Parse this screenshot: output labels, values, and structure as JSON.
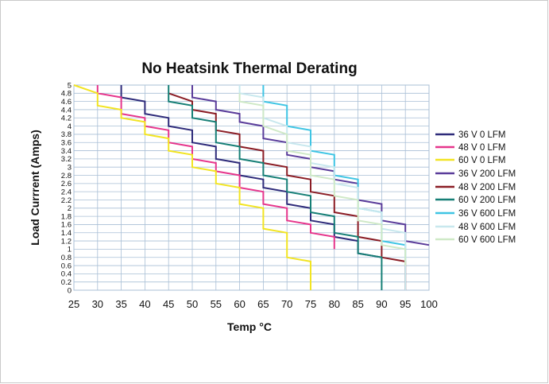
{
  "chart_data": {
    "type": "line",
    "title": "No Heatsink Thermal Derating",
    "xlabel": "Temp °C",
    "ylabel": "Load Currrent (Amps)",
    "xlim": [
      25,
      100
    ],
    "ylim": [
      0,
      5
    ],
    "x_ticks": [
      "25",
      "30",
      "35",
      "40",
      "45",
      "50",
      "55",
      "60",
      "65",
      "70",
      "75",
      "80",
      "85",
      "90",
      "95",
      "100"
    ],
    "y_ticks": [
      "0",
      "0.2",
      "0.4",
      "0.6",
      "0.8",
      "1",
      "1.2",
      "1.4",
      "1.6",
      "1.8",
      "2",
      "2.2",
      "2.4",
      "2.6",
      "2.8",
      "3",
      "3.2",
      "3.4",
      "3.6",
      "3.8",
      "4",
      "4.2",
      "4.4",
      "4.6",
      "4.8",
      "5"
    ],
    "grid": true,
    "legend_position": "right",
    "series": [
      {
        "name": "36 V 0 LFM",
        "color": "#2e2b7a",
        "points": [
          [
            35,
            5
          ],
          [
            35,
            4.7
          ],
          [
            40,
            4.6
          ],
          [
            40,
            4.3
          ],
          [
            45,
            4.2
          ],
          [
            45,
            4.0
          ],
          [
            50,
            3.9
          ],
          [
            50,
            3.6
          ],
          [
            55,
            3.5
          ],
          [
            55,
            3.2
          ],
          [
            60,
            3.1
          ],
          [
            60,
            2.8
          ],
          [
            65,
            2.7
          ],
          [
            65,
            2.5
          ],
          [
            70,
            2.4
          ],
          [
            70,
            2.1
          ],
          [
            75,
            2.0
          ],
          [
            75,
            1.7
          ],
          [
            80,
            1.6
          ],
          [
            80,
            1.3
          ],
          [
            85,
            1.2
          ],
          [
            85,
            0.9
          ],
          [
            90,
            0.8
          ]
        ]
      },
      {
        "name": "48 V 0 LFM",
        "color": "#e6368c",
        "points": [
          [
            30,
            5
          ],
          [
            30,
            4.8
          ],
          [
            35,
            4.7
          ],
          [
            35,
            4.3
          ],
          [
            40,
            4.2
          ],
          [
            40,
            4.0
          ],
          [
            45,
            3.9
          ],
          [
            45,
            3.6
          ],
          [
            50,
            3.5
          ],
          [
            50,
            3.2
          ],
          [
            55,
            3.1
          ],
          [
            55,
            2.9
          ],
          [
            60,
            2.8
          ],
          [
            60,
            2.5
          ],
          [
            65,
            2.4
          ],
          [
            65,
            2.1
          ],
          [
            70,
            2.0
          ],
          [
            70,
            1.7
          ],
          [
            75,
            1.6
          ],
          [
            75,
            1.4
          ],
          [
            80,
            1.3
          ],
          [
            80,
            1.0
          ]
        ]
      },
      {
        "name": "60 V 0 LFM",
        "color": "#f2e422",
        "points": [
          [
            25,
            5
          ],
          [
            30,
            4.8
          ],
          [
            30,
            4.5
          ],
          [
            35,
            4.4
          ],
          [
            35,
            4.2
          ],
          [
            40,
            4.1
          ],
          [
            40,
            3.8
          ],
          [
            45,
            3.7
          ],
          [
            45,
            3.4
          ],
          [
            50,
            3.3
          ],
          [
            50,
            3.0
          ],
          [
            55,
            2.9
          ],
          [
            55,
            2.6
          ],
          [
            60,
            2.5
          ],
          [
            60,
            2.1
          ],
          [
            65,
            2.0
          ],
          [
            65,
            1.5
          ],
          [
            70,
            1.4
          ],
          [
            70,
            0.8
          ],
          [
            75,
            0.7
          ],
          [
            75,
            0
          ]
        ]
      },
      {
        "name": "36 V 200 LFM",
        "color": "#5a3c9a",
        "points": [
          [
            50,
            5
          ],
          [
            50,
            4.7
          ],
          [
            55,
            4.6
          ],
          [
            55,
            4.4
          ],
          [
            60,
            4.3
          ],
          [
            60,
            4.1
          ],
          [
            65,
            4.0
          ],
          [
            65,
            3.7
          ],
          [
            70,
            3.6
          ],
          [
            70,
            3.3
          ],
          [
            75,
            3.2
          ],
          [
            75,
            3.0
          ],
          [
            80,
            2.9
          ],
          [
            80,
            2.7
          ],
          [
            85,
            2.6
          ],
          [
            85,
            2.2
          ],
          [
            90,
            2.1
          ],
          [
            90,
            1.7
          ],
          [
            95,
            1.6
          ],
          [
            95,
            1.2
          ],
          [
            100,
            1.1
          ]
        ]
      },
      {
        "name": "48 V 200 LFM",
        "color": "#8b1d25",
        "points": [
          [
            45,
            4.8
          ],
          [
            50,
            4.6
          ],
          [
            50,
            4.4
          ],
          [
            55,
            4.3
          ],
          [
            55,
            3.9
          ],
          [
            60,
            3.8
          ],
          [
            60,
            3.5
          ],
          [
            65,
            3.4
          ],
          [
            65,
            3.1
          ],
          [
            70,
            3.0
          ],
          [
            70,
            2.8
          ],
          [
            75,
            2.7
          ],
          [
            75,
            2.4
          ],
          [
            80,
            2.3
          ],
          [
            80,
            1.9
          ],
          [
            85,
            1.8
          ],
          [
            85,
            1.3
          ],
          [
            90,
            1.2
          ],
          [
            90,
            0.8
          ],
          [
            95,
            0.7
          ],
          [
            95,
            0
          ]
        ]
      },
      {
        "name": "60 V 200 LFM",
        "color": "#167f76",
        "points": [
          [
            45,
            5
          ],
          [
            45,
            4.6
          ],
          [
            50,
            4.5
          ],
          [
            50,
            4.2
          ],
          [
            55,
            4.1
          ],
          [
            55,
            3.6
          ],
          [
            60,
            3.5
          ],
          [
            60,
            3.2
          ],
          [
            65,
            3.1
          ],
          [
            65,
            2.8
          ],
          [
            70,
            2.7
          ],
          [
            70,
            2.4
          ],
          [
            75,
            2.3
          ],
          [
            75,
            1.9
          ],
          [
            80,
            1.8
          ],
          [
            80,
            1.4
          ],
          [
            85,
            1.3
          ],
          [
            85,
            0.9
          ],
          [
            90,
            0.8
          ],
          [
            90,
            0
          ]
        ]
      },
      {
        "name": "36 V 600 LFM",
        "color": "#3fc5e4",
        "points": [
          [
            65,
            5
          ],
          [
            65,
            4.6
          ],
          [
            70,
            4.5
          ],
          [
            70,
            4.0
          ],
          [
            75,
            3.9
          ],
          [
            75,
            3.4
          ],
          [
            80,
            3.3
          ],
          [
            80,
            2.8
          ],
          [
            85,
            2.7
          ],
          [
            85,
            2.0
          ],
          [
            90,
            1.9
          ],
          [
            90,
            1.2
          ],
          [
            95,
            1.1
          ],
          [
            95,
            0.7
          ]
        ]
      },
      {
        "name": "48 V 600 LFM",
        "color": "#c8e8ee",
        "points": [
          [
            60,
            5
          ],
          [
            60,
            4.8
          ],
          [
            65,
            4.7
          ],
          [
            65,
            4.2
          ],
          [
            70,
            4.0
          ],
          [
            70,
            3.6
          ],
          [
            75,
            3.5
          ],
          [
            75,
            3.1
          ],
          [
            80,
            3.0
          ],
          [
            80,
            2.6
          ],
          [
            85,
            2.5
          ],
          [
            85,
            2.0
          ],
          [
            90,
            1.9
          ],
          [
            90,
            1.5
          ],
          [
            95,
            1.4
          ],
          [
            95,
            0
          ]
        ]
      },
      {
        "name": "60 V 600 LFM",
        "color": "#cfe9c7",
        "points": [
          [
            60,
            4.8
          ],
          [
            60,
            4.6
          ],
          [
            65,
            4.5
          ],
          [
            65,
            4.0
          ],
          [
            70,
            3.8
          ],
          [
            70,
            3.4
          ],
          [
            75,
            3.3
          ],
          [
            75,
            2.8
          ],
          [
            80,
            2.7
          ],
          [
            80,
            2.3
          ],
          [
            85,
            2.2
          ],
          [
            85,
            1.7
          ],
          [
            90,
            1.6
          ],
          [
            90,
            1.1
          ],
          [
            95,
            1.0
          ],
          [
            95,
            0.6
          ]
        ]
      }
    ]
  }
}
